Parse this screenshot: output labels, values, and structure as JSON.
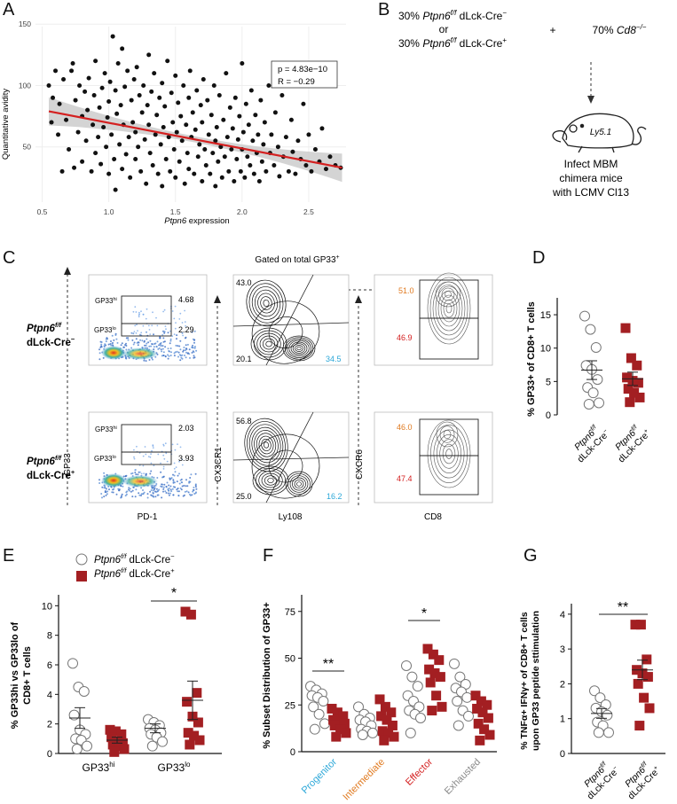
{
  "panels": {
    "A": "A",
    "B": "B",
    "C": "C",
    "D": "D",
    "E": "E",
    "F": "F",
    "G": "G"
  },
  "colors": {
    "red_series": "#a31f22",
    "fit_line": "#d42020",
    "ci_band": "#cccccc",
    "orange": "#e07a20",
    "cyan": "#2ba7d8",
    "red_label": "#d42020",
    "grey_label": "#888888"
  },
  "panelA": {
    "ylabel": "Quantitative avidity",
    "xlabel_italic": "Ptpn6",
    "xlabel_rest": " expression",
    "stats_p": "p = 4.83e−10",
    "stats_r": "R = −0.29"
  },
  "panelB": {
    "line1_pre": "30% ",
    "line1_gene": "Ptpn6",
    "line1_sup": "f/f",
    "line1_post": " dLck-Cre",
    "line1_post_sup": "−",
    "or": "or",
    "line2_pre": "30% ",
    "line2_gene": "Ptpn6",
    "line2_sup": "f/f",
    "line2_post": " dLck-Cre",
    "line2_post_sup": "+",
    "plus": "+",
    "right_pre": "70% ",
    "right_gene": "Cd8",
    "right_sup": "−/−",
    "mouse_label": "Ly5.1",
    "infect_1": "Infect MBM",
    "infect_2": "chimera mice",
    "infect_3": "with LCMV Cl13"
  },
  "panelC": {
    "gated_title": "Gated on total GP33",
    "gated_sup": "+",
    "row1_gene": "Ptpn6",
    "row1_sup": "f/f",
    "row1_line2": "dLck-Cre",
    "row1_line2_sup": "−",
    "row2_gene": "Ptpn6",
    "row2_sup": "f/f",
    "row2_line2": "dLck-Cre",
    "row2_line2_sup": "+",
    "gp33hi": "GP33",
    "gp33hi_sup": "hi",
    "gp33lo": "GP33",
    "gp33lo_sup": "lo",
    "row1_hi_val": "4.68",
    "row1_lo_val": "2.29",
    "row2_hi_val": "2.03",
    "row2_lo_val": "3.93",
    "row1_cx_tl": "43.0",
    "row1_cx_bl": "20.1",
    "row1_cx_br": "34.5",
    "row2_cx_tl": "56.8",
    "row2_cx_bl": "25.0",
    "row2_cx_br": "16.2",
    "row1_cxcr6_top": "51.0",
    "row1_cxcr6_bot": "46.9",
    "row2_cxcr6_top": "46.0",
    "row2_cxcr6_bot": "47.4",
    "ax_gp33": "GP33",
    "ax_pd1": "PD-1",
    "ax_cx3cr1": "CX3CR1",
    "ax_ly108": "Ly108",
    "ax_cxcr6": "CXCR6",
    "ax_cd8": "CD8"
  },
  "chart_data": [
    {
      "panel": "A",
      "type": "scatter",
      "xlabel": "Ptpn6 expression",
      "ylabel": "Quantitative avidity",
      "xticks": [
        "0.5",
        "1.0",
        "1.5",
        "2.0",
        "2.5"
      ],
      "yticks": [
        "50",
        "100",
        "150"
      ],
      "xlim": [
        0.45,
        2.78
      ],
      "ylim": [
        5,
        148
      ],
      "fit_line": {
        "x": [
          0.55,
          2.75
        ],
        "y": [
          79,
          33
        ]
      },
      "points": [
        [
          0.55,
          100
        ],
        [
          0.57,
          70
        ],
        [
          0.58,
          90
        ],
        [
          0.6,
          112
        ],
        [
          0.62,
          60
        ],
        [
          0.63,
          85
        ],
        [
          0.65,
          30
        ],
        [
          0.66,
          105
        ],
        [
          0.68,
          72
        ],
        [
          0.7,
          48
        ],
        [
          0.72,
          112
        ],
        [
          0.73,
          118
        ],
        [
          0.74,
          33
        ],
        [
          0.75,
          88
        ],
        [
          0.77,
          62
        ],
        [
          0.78,
          100
        ],
        [
          0.8,
          38
        ],
        [
          0.8,
          75
        ],
        [
          0.82,
          95
        ],
        [
          0.83,
          55
        ],
        [
          0.84,
          80
        ],
        [
          0.85,
          106
        ],
        [
          0.87,
          30
        ],
        [
          0.88,
          68
        ],
        [
          0.89,
          92
        ],
        [
          0.9,
          45
        ],
        [
          0.9,
          120
        ],
        [
          0.92,
          58
        ],
        [
          0.93,
          82
        ],
        [
          0.94,
          36
        ],
        [
          0.95,
          98
        ],
        [
          0.96,
          66
        ],
        [
          0.97,
          110
        ],
        [
          0.98,
          50
        ],
        [
          0.99,
          74
        ],
        [
          1.0,
          28
        ],
        [
          1.0,
          87
        ],
        [
          1.01,
          103
        ],
        [
          1.02,
          60
        ],
        [
          1.03,
          140
        ],
        [
          1.04,
          40
        ],
        [
          1.05,
          96
        ],
        [
          1.05,
          15
        ],
        [
          1.06,
          77
        ],
        [
          1.07,
          118
        ],
        [
          1.08,
          52
        ],
        [
          1.09,
          84
        ],
        [
          1.1,
          32
        ],
        [
          1.1,
          130
        ],
        [
          1.11,
          68
        ],
        [
          1.12,
          99
        ],
        [
          1.13,
          44
        ],
        [
          1.14,
          112
        ],
        [
          1.15,
          58
        ],
        [
          1.16,
          25
        ],
        [
          1.17,
          88
        ],
        [
          1.18,
          70
        ],
        [
          1.19,
          105
        ],
        [
          1.2,
          40
        ],
        [
          1.2,
          62
        ],
        [
          1.21,
          115
        ],
        [
          1.22,
          50
        ],
        [
          1.23,
          92
        ],
        [
          1.24,
          30
        ],
        [
          1.25,
          78
        ],
        [
          1.26,
          100
        ],
        [
          1.27,
          56
        ],
        [
          1.28,
          20
        ],
        [
          1.29,
          84
        ],
        [
          1.3,
          68
        ],
        [
          1.3,
          125
        ],
        [
          1.31,
          45
        ],
        [
          1.32,
          95
        ],
        [
          1.33,
          35
        ],
        [
          1.34,
          110
        ],
        [
          1.35,
          60
        ],
        [
          1.36,
          76
        ],
        [
          1.37,
          28
        ],
        [
          1.38,
          90
        ],
        [
          1.39,
          52
        ],
        [
          1.4,
          102
        ],
        [
          1.4,
          18
        ],
        [
          1.41,
          66
        ],
        [
          1.42,
          83
        ],
        [
          1.43,
          40
        ],
        [
          1.44,
          120
        ],
        [
          1.45,
          58
        ],
        [
          1.46,
          30
        ],
        [
          1.47,
          94
        ],
        [
          1.48,
          70
        ],
        [
          1.49,
          48
        ],
        [
          1.5,
          108
        ],
        [
          1.5,
          25
        ],
        [
          1.51,
          62
        ],
        [
          1.52,
          86
        ],
        [
          1.53,
          38
        ],
        [
          1.54,
          75
        ],
        [
          1.55,
          55
        ],
        [
          1.56,
          100
        ],
        [
          1.57,
          20
        ],
        [
          1.58,
          68
        ],
        [
          1.59,
          45
        ],
        [
          1.6,
          90
        ],
        [
          1.6,
          32
        ],
        [
          1.61,
          112
        ],
        [
          1.62,
          58
        ],
        [
          1.63,
          78
        ],
        [
          1.64,
          28
        ],
        [
          1.65,
          64
        ],
        [
          1.66,
          96
        ],
        [
          1.67,
          42
        ],
        [
          1.68,
          52
        ],
        [
          1.69,
          84
        ],
        [
          1.7,
          22
        ],
        [
          1.7,
          70
        ],
        [
          1.71,
          105
        ],
        [
          1.72,
          48
        ],
        [
          1.73,
          35
        ],
        [
          1.74,
          88
        ],
        [
          1.75,
          60
        ],
        [
          1.76,
          28
        ],
        [
          1.77,
          76
        ],
        [
          1.78,
          45
        ],
        [
          1.79,
          100
        ],
        [
          1.8,
          55
        ],
        [
          1.8,
          18
        ],
        [
          1.81,
          66
        ],
        [
          1.82,
          38
        ],
        [
          1.83,
          92
        ],
        [
          1.84,
          50
        ],
        [
          1.85,
          25
        ],
        [
          1.86,
          72
        ],
        [
          1.87,
          42
        ],
        [
          1.88,
          110
        ],
        [
          1.89,
          58
        ],
        [
          1.9,
          30
        ],
        [
          1.91,
          82
        ],
        [
          1.92,
          48
        ],
        [
          1.93,
          65
        ],
        [
          1.94,
          22
        ],
        [
          1.95,
          90
        ],
        [
          1.96,
          40
        ],
        [
          1.97,
          56
        ],
        [
          1.98,
          75
        ],
        [
          1.99,
          30
        ],
        [
          2.0,
          118
        ],
        [
          2.0,
          48
        ],
        [
          2.01,
          62
        ],
        [
          2.02,
          25
        ],
        [
          2.03,
          85
        ],
        [
          2.04,
          42
        ],
        [
          2.05,
          68
        ],
        [
          2.06,
          35
        ],
        [
          2.07,
          96
        ],
        [
          2.08,
          55
        ],
        [
          2.09,
          28
        ],
        [
          2.1,
          76
        ],
        [
          2.11,
          45
        ],
        [
          2.12,
          60
        ],
        [
          2.13,
          22
        ],
        [
          2.14,
          88
        ],
        [
          2.15,
          38
        ],
        [
          2.16,
          52
        ],
        [
          2.17,
          70
        ],
        [
          2.18,
          30
        ],
        [
          2.2,
          100
        ],
        [
          2.21,
          45
        ],
        [
          2.22,
          60
        ],
        [
          2.24,
          35
        ],
        [
          2.25,
          78
        ],
        [
          2.27,
          50
        ],
        [
          2.28,
          26
        ],
        [
          2.3,
          92
        ],
        [
          2.31,
          42
        ],
        [
          2.33,
          58
        ],
        [
          2.35,
          30
        ],
        [
          2.37,
          72
        ],
        [
          2.38,
          46
        ],
        [
          2.4,
          28
        ],
        [
          2.42,
          55
        ],
        [
          2.44,
          40
        ],
        [
          2.46,
          85
        ],
        [
          2.48,
          35
        ],
        [
          2.5,
          60
        ],
        [
          2.52,
          30
        ],
        [
          2.55,
          48
        ],
        [
          2.58,
          38
        ],
        [
          2.6,
          65
        ],
        [
          2.63,
          32
        ],
        [
          2.66,
          42
        ],
        [
          2.7,
          35
        ],
        [
          2.74,
          33
        ]
      ]
    },
    {
      "panel": "D",
      "type": "scatter",
      "ylabel": "% GP33+ of CD8+ T cells",
      "categories": [
        "Ptpn6f/f dLck-Cre−",
        "Ptpn6f/f dLck-Cre+"
      ],
      "yticks": [
        "0",
        "5",
        "10",
        "15"
      ],
      "ylim": [
        0,
        17
      ],
      "series": [
        {
          "name": "Ptpn6f/f dLck-Cre−",
          "marker": "open-circle",
          "values": [
            14.8,
            12.8,
            10.1,
            7.4,
            6.8,
            5.3,
            4.1,
            3.3,
            1.8,
            1.6
          ],
          "mean": 6.7,
          "sem": 1.4
        },
        {
          "name": "Ptpn6f/f dLck-Cre+",
          "marker": "red-square",
          "values": [
            13.0,
            8.5,
            7.4,
            5.6,
            5.1,
            4.8,
            3.9,
            3.3,
            2.6,
            1.9
          ],
          "mean": 5.4,
          "sem": 1.0
        }
      ]
    },
    {
      "panel": "E",
      "type": "scatter",
      "ylabel": "% GP33hi vs GP33lo of CD8+ T cells",
      "categories": [
        "GP33hi",
        "GP33lo"
      ],
      "yticks": [
        "0",
        "2",
        "4",
        "6",
        "8",
        "10"
      ],
      "ylim": [
        0,
        10.5
      ],
      "legend": [
        "Ptpn6f/f dLck-Cre−",
        "Ptpn6f/f dLck-Cre+"
      ],
      "significance": [
        "",
        "*"
      ],
      "series": [
        {
          "name": "Ptpn6f/f dLck-Cre−",
          "marker": "open-circle",
          "values": [
            [
              6.1,
              4.5,
              4.2,
              2.6,
              1.6,
              1.3,
              1.0,
              0.9,
              0.5,
              0.3
            ],
            [
              2.3,
              2.1,
              1.9,
              1.7,
              1.6,
              1.4,
              1.3,
              1.1,
              0.8,
              0.5
            ]
          ],
          "mean": [
            2.4,
            1.7
          ],
          "sem": [
            0.7,
            0.3
          ]
        },
        {
          "name": "Ptpn6f/f dLck-Cre+",
          "marker": "red-square",
          "values": [
            [
              1.6,
              1.5,
              1.3,
              1.1,
              0.8,
              0.7,
              0.6,
              0.5,
              0.3,
              0.1
            ],
            [
              9.6,
              9.4,
              4.1,
              3.5,
              2.5,
              2.1,
              1.4,
              1.2,
              0.9,
              0.6
            ]
          ],
          "mean": [
            0.9,
            3.6
          ],
          "sem": [
            0.2,
            1.3
          ]
        }
      ]
    },
    {
      "panel": "F",
      "type": "scatter",
      "ylabel": "% Subset Distribution of GP33+",
      "categories": [
        "Progenitor",
        "Intermediate",
        "Effector",
        "Exhausted"
      ],
      "category_colors": [
        "#2ba7d8",
        "#e07a20",
        "#d42020",
        "#888888"
      ],
      "yticks": [
        "0",
        "25",
        "50",
        "75"
      ],
      "ylim": [
        0,
        82
      ],
      "significance": [
        "**",
        "",
        "*",
        ""
      ],
      "series": [
        {
          "name": "Ptpn6f/f dLck-Cre−",
          "marker": "open-circle",
          "values": [
            [
              35,
              33,
              31,
              30,
              29,
              27,
              24,
              20,
              15,
              12
            ],
            [
              24,
              20,
              18,
              17,
              16,
              14,
              12,
              11,
              10,
              9
            ],
            [
              46,
              40,
              35,
              30,
              27,
              24,
              22,
              20,
              18,
              10
            ],
            [
              47,
              40,
              36,
              34,
              32,
              29,
              27,
              22,
              19,
              14
            ]
          ]
        },
        {
          "name": "Ptpn6f/f dLck-Cre+",
          "marker": "red-square",
          "values": [
            [
              23,
              21,
              19,
              17,
              16,
              15,
              14,
              12,
              10,
              8
            ],
            [
              28,
              24,
              21,
              19,
              17,
              14,
              11,
              10,
              8,
              6
            ],
            [
              55,
              52,
              49,
              44,
              42,
              40,
              37,
              30,
              24,
              22
            ],
            [
              30,
              27,
              25,
              23,
              21,
              18,
              15,
              12,
              9,
              6
            ]
          ]
        }
      ]
    },
    {
      "panel": "G",
      "type": "scatter",
      "ylabel": "% TNFα+ IFNγ+ of CD8+ T cells upon GP33 peptide sttimulation",
      "categories": [
        "Ptpn6f/f dLck-Cre−",
        "Ptpn6f/f dLck-Cre+"
      ],
      "yticks": [
        "0",
        "1",
        "2",
        "3",
        "4"
      ],
      "ylim": [
        0,
        4.2
      ],
      "significance": "**",
      "series": [
        {
          "name": "Ptpn6f/f dLck-Cre−",
          "marker": "open-circle",
          "values": [
            1.8,
            1.6,
            1.4,
            1.3,
            1.2,
            1.1,
            0.9,
            0.8,
            0.6,
            0.6
          ],
          "mean": 1.15,
          "sem": 0.14
        },
        {
          "name": "Ptpn6f/f dLck-Cre+",
          "marker": "red-square",
          "values": [
            3.7,
            3.7,
            2.7,
            2.4,
            2.3,
            2.2,
            2.0,
            1.6,
            1.3,
            0.8
          ],
          "mean": 2.4,
          "sem": 0.28
        }
      ]
    }
  ]
}
